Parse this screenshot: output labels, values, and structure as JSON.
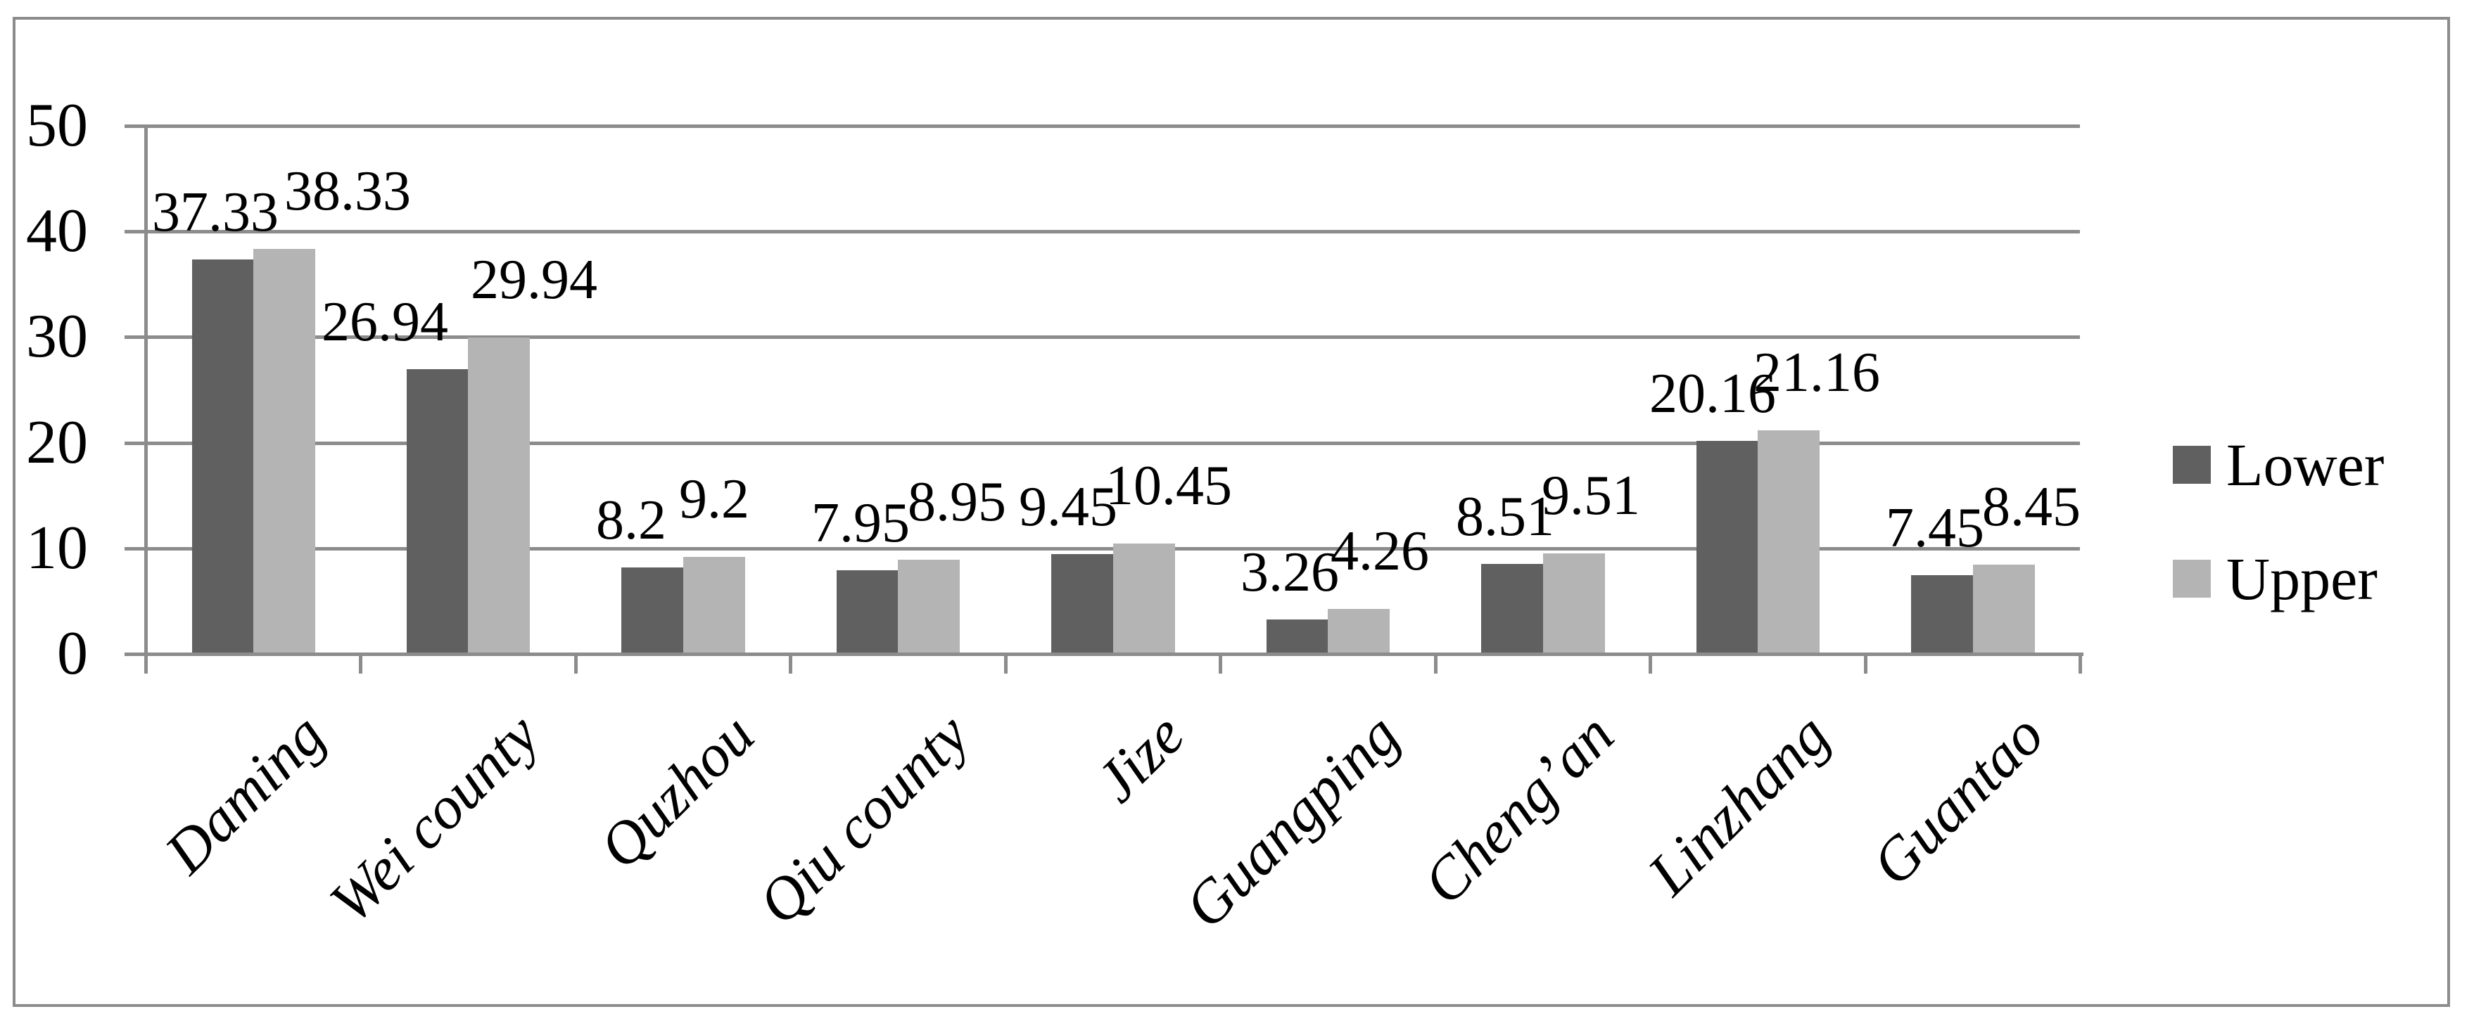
{
  "chart_data": {
    "type": "bar",
    "title": "",
    "xlabel": "",
    "ylabel": "",
    "categories": [
      "Daming",
      "Wei county",
      "Quzhou",
      "Qiu county",
      "Jize",
      "Guangping",
      "Cheng’an",
      "Linzhang",
      "Guantao"
    ],
    "series": [
      {
        "name": "Lower",
        "values": [
          37.33,
          26.94,
          8.2,
          7.95,
          9.45,
          3.26,
          8.51,
          20.16,
          7.45
        ]
      },
      {
        "name": "Upper",
        "values": [
          38.33,
          29.94,
          9.2,
          8.95,
          10.45,
          4.26,
          9.51,
          21.16,
          8.45
        ]
      }
    ],
    "data_labels": {
      "lower": [
        "37.33",
        "26.94",
        "8.2",
        "7.95",
        "9.45",
        "3.26",
        "8.51",
        "20.16",
        "7.45"
      ],
      "upper": [
        "38.33",
        "29.94",
        "9.2",
        "8.95",
        "10.45",
        "4.26",
        "9.51",
        "21.16",
        "8.45"
      ]
    },
    "y_ticks": [
      "0",
      "10",
      "20",
      "30",
      "40",
      "50"
    ],
    "ylim": [
      0,
      50
    ],
    "grid": true,
    "legend_position": "right",
    "colors": {
      "lower_series": "#606060",
      "upper_series": "#B4B4B4",
      "axis_and_grid": "#8C8C8C",
      "frame_border": "#8C8C8C",
      "text": "#000000",
      "background": "#FFFFFF"
    }
  },
  "legend": {
    "items": [
      {
        "label": "Lower",
        "swatch": "lower-swatch-icon"
      },
      {
        "label": "Upper",
        "swatch": "upper-swatch-icon"
      }
    ]
  }
}
